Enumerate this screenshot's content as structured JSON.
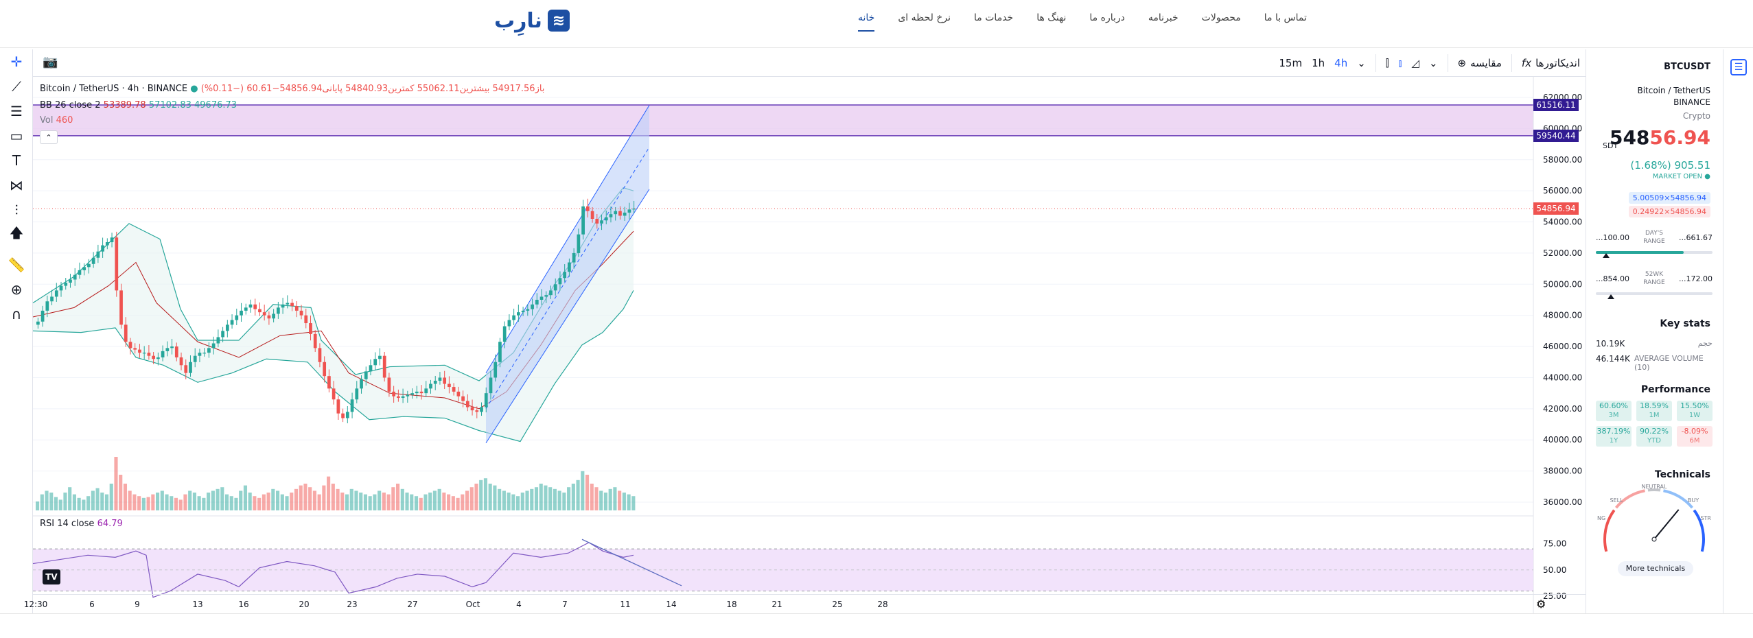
{
  "header": {
    "logo_text": "نارِب",
    "logo_mark": "≋",
    "nav": [
      {
        "label": "خانه",
        "active": true
      },
      {
        "label": "نرخ لحظه ای",
        "active": false
      },
      {
        "label": "خدمات ما",
        "active": false
      },
      {
        "label": "نهنگ ها",
        "active": false
      },
      {
        "label": "درباره ما",
        "active": false
      },
      {
        "label": "خبرنامه",
        "active": false
      },
      {
        "label": "محصولات",
        "active": false
      },
      {
        "label": "تماس با ما",
        "active": false
      }
    ]
  },
  "toolbar": {
    "timeframes": [
      "15m",
      "1h",
      "4h"
    ],
    "active_timeframe": "4h",
    "compare_label": "مقایسه",
    "indicators_label": "اندیکاتورها",
    "indicators_icon": "fx"
  },
  "legend": {
    "symbol_line": "Bitcoin / TetherUS · 4h · BINANCE",
    "ohlc_line": "باز54917.56  بیشترین55062.11  کمترین54840.93  پایانی54856.94−60.61 (−0.11%)",
    "bb_name": "BB 26 close 2",
    "bb_basis": "53389.78",
    "bb_upper": "57102.83",
    "bb_lower": "49676.73",
    "vol_name": "Vol",
    "vol_value": "460",
    "rsi_name": "RSI 14 close",
    "rsi_value": "64.79"
  },
  "price_labels": {
    "upper_line": "61516.11",
    "lower_line": "59540.44",
    "last": "54856.94"
  },
  "chart_data": {
    "type": "candlestick",
    "symbol": "BTCUSDT",
    "interval": "4h",
    "y_ticks": [
      "62000.00",
      "60000.00",
      "58000.00",
      "56000.00",
      "54000.00",
      "52000.00",
      "50000.00",
      "48000.00",
      "46000.00",
      "44000.00",
      "42000.00",
      "40000.00",
      "38000.00",
      "36000.00"
    ],
    "ylim": [
      36000,
      62000
    ],
    "rsi_ticks": [
      "75.00",
      "50.00",
      "25.00"
    ],
    "x_ticks": [
      "12:30",
      "6",
      "9",
      "13",
      "16",
      "20",
      "23",
      "27",
      "Oct",
      "4",
      "7",
      "11",
      "14",
      "18",
      "21",
      "25",
      "28"
    ],
    "closes": [
      47600,
      48300,
      48900,
      49200,
      49600,
      49900,
      50100,
      50300,
      50600,
      50900,
      51100,
      51300,
      51700,
      52100,
      52500,
      52700,
      53000,
      49600,
      47400,
      46300,
      45900,
      45800,
      45600,
      45600,
      45400,
      45200,
      45300,
      45700,
      45900,
      46000,
      45300,
      44800,
      44300,
      45000,
      45400,
      45600,
      45600,
      45900,
      46200,
      46600,
      47000,
      47400,
      47700,
      48000,
      48300,
      48500,
      48700,
      48400,
      48200,
      48000,
      47800,
      48100,
      48500,
      48700,
      48800,
      48600,
      48300,
      48000,
      47500,
      46800,
      45900,
      45000,
      44100,
      43300,
      42600,
      41700,
      41400,
      41800,
      42600,
      43300,
      43900,
      44400,
      44800,
      45200,
      45400,
      44000,
      43100,
      42800,
      42700,
      42800,
      42900,
      43000,
      43100,
      43000,
      43300,
      43600,
      43800,
      44000,
      43600,
      43400,
      43100,
      42800,
      42500,
      42100,
      41900,
      41800,
      42100,
      43000,
      44000,
      45000,
      46300,
      47300,
      47700,
      48000,
      48200,
      48300,
      48400,
      48700,
      49000,
      49200,
      49300,
      49600,
      50000,
      50400,
      50800,
      51400,
      52000,
      53200,
      55000,
      54700,
      54200,
      53900,
      54100,
      54300,
      54500,
      54700,
      54400,
      54600,
      54800,
      54857
    ],
    "bb_upper_pts": [
      [
        0,
        48800
      ],
      [
        60,
        50500
      ],
      [
        100,
        52200
      ],
      [
        140,
        53900
      ],
      [
        185,
        52900
      ],
      [
        215,
        48400
      ],
      [
        240,
        46400
      ],
      [
        300,
        46400
      ],
      [
        350,
        48700
      ],
      [
        405,
        48500
      ],
      [
        420,
        46400
      ],
      [
        470,
        44200
      ],
      [
        520,
        44700
      ],
      [
        600,
        44800
      ],
      [
        650,
        43800
      ],
      [
        700,
        45600
      ],
      [
        760,
        50000
      ],
      [
        785,
        51400
      ],
      [
        820,
        54000
      ],
      [
        860,
        56200
      ],
      [
        875,
        56000
      ]
    ],
    "bb_lower_pts": [
      [
        0,
        47000
      ],
      [
        70,
        46900
      ],
      [
        120,
        47200
      ],
      [
        150,
        45300
      ],
      [
        190,
        44800
      ],
      [
        240,
        43700
      ],
      [
        290,
        44300
      ],
      [
        340,
        45200
      ],
      [
        400,
        45000
      ],
      [
        440,
        43100
      ],
      [
        490,
        41300
      ],
      [
        540,
        41500
      ],
      [
        600,
        41400
      ],
      [
        650,
        40600
      ],
      [
        710,
        39900
      ],
      [
        760,
        43600
      ],
      [
        800,
        46100
      ],
      [
        830,
        46900
      ],
      [
        860,
        48400
      ],
      [
        875,
        49600
      ]
    ],
    "bb_basis_pts": [
      [
        0,
        47900
      ],
      [
        60,
        48500
      ],
      [
        110,
        49900
      ],
      [
        150,
        51400
      ],
      [
        180,
        48800
      ],
      [
        240,
        46300
      ],
      [
        300,
        45300
      ],
      [
        360,
        46700
      ],
      [
        420,
        47000
      ],
      [
        460,
        44300
      ],
      [
        520,
        43000
      ],
      [
        600,
        42700
      ],
      [
        650,
        42000
      ],
      [
        690,
        43100
      ],
      [
        740,
        46100
      ],
      [
        790,
        49600
      ],
      [
        830,
        51300
      ],
      [
        875,
        53400
      ]
    ],
    "channel": {
      "top": [
        [
          660,
          44300
        ],
        [
          898,
          61500
        ]
      ],
      "bottom": [
        [
          660,
          39800
        ],
        [
          898,
          56100
        ]
      ],
      "mid": [
        [
          660,
          42000
        ],
        [
          898,
          58800
        ]
      ]
    },
    "h_zone": [
      59540.44,
      61516.11
    ],
    "last_price": 54856.94,
    "volume": [
      10,
      18,
      22,
      20,
      15,
      12,
      20,
      26,
      18,
      14,
      12,
      16,
      22,
      25,
      20,
      18,
      30,
      60,
      40,
      30,
      22,
      18,
      16,
      14,
      15,
      18,
      20,
      22,
      18,
      16,
      14,
      12,
      18,
      22,
      20,
      16,
      14,
      20,
      22,
      24,
      26,
      18,
      16,
      14,
      22,
      28,
      20,
      16,
      14,
      18,
      20,
      24,
      22,
      18,
      16,
      20,
      24,
      28,
      30,
      26,
      22,
      18,
      28,
      38,
      30,
      24,
      20,
      18,
      24,
      22,
      20,
      18,
      16,
      18,
      22,
      20,
      18,
      26,
      30,
      24,
      20,
      18,
      16,
      14,
      18,
      20,
      22,
      24,
      20,
      18,
      16,
      14,
      18,
      22,
      26,
      30,
      34,
      36,
      30,
      28,
      24,
      22,
      20,
      18,
      16,
      20,
      22,
      24,
      26,
      30,
      28,
      26,
      24,
      22,
      20,
      26,
      30,
      34,
      44,
      40,
      30,
      26,
      22,
      20,
      24,
      26,
      22,
      20,
      18,
      16
    ],
    "rsi_pts": [
      [
        0,
        56
      ],
      [
        40,
        60
      ],
      [
        80,
        64
      ],
      [
        120,
        62
      ],
      [
        150,
        68
      ],
      [
        165,
        64
      ],
      [
        175,
        24
      ],
      [
        200,
        30
      ],
      [
        240,
        46
      ],
      [
        280,
        40
      ],
      [
        300,
        34
      ],
      [
        330,
        52
      ],
      [
        370,
        58
      ],
      [
        410,
        54
      ],
      [
        440,
        48
      ],
      [
        460,
        28
      ],
      [
        500,
        34
      ],
      [
        530,
        42
      ],
      [
        560,
        46
      ],
      [
        600,
        44
      ],
      [
        640,
        34
      ],
      [
        660,
        38
      ],
      [
        700,
        66
      ],
      [
        740,
        62
      ],
      [
        780,
        66
      ],
      [
        810,
        76
      ],
      [
        830,
        68
      ],
      [
        860,
        62
      ],
      [
        875,
        64
      ]
    ],
    "rsi_trend": [
      [
        800,
        79
      ],
      [
        945,
        35
      ]
    ]
  },
  "side_panel": {
    "symbol": "BTCUSDT",
    "name": "Bitcoin / TetherUS",
    "exchange": "BINANCE",
    "type": "Crypto",
    "price_prefix": "548",
    "price_suffix": "56.94",
    "currency": "SDT",
    "change": "(1.68%) 905.51",
    "market_status": "MARKET OPEN",
    "bid": "5.00509×54856.94",
    "ask": "0.24922×54856.94",
    "day_range_lo": "...100.00",
    "day_range_hi": "...661.67",
    "day_range_label": "DAY'S RANGE",
    "day_range_fill": 0.75,
    "wk_range_lo": "...854.00",
    "wk_range_hi": "...172.00",
    "wk_range_label": "52WK RANGE",
    "wk_range_pointer": 0.1,
    "key_stats_title": "Key stats",
    "stat1_value": "10.19K",
    "stat1_label": "حجم",
    "stat2_value": "46.144K",
    "stat2_label": "AVERAGE VOLUME (10)",
    "performance_title": "Performance",
    "performance": [
      {
        "value": "60.60%",
        "period": "3M",
        "dir": "pos"
      },
      {
        "value": "18.59%",
        "period": "1M",
        "dir": "pos"
      },
      {
        "value": "15.50%",
        "period": "1W",
        "dir": "pos"
      },
      {
        "value": "387.19%",
        "period": "1Y",
        "dir": "pos"
      },
      {
        "value": "90.22%",
        "period": "YTD",
        "dir": "pos"
      },
      {
        "value": "-8.09%",
        "period": "6M",
        "dir": "neg"
      }
    ],
    "technicals_title": "Technicals",
    "gauge_labels": {
      "neutral": "NEUTRAL",
      "sell": "SELL",
      "buy": "BUY",
      "strong_sell": "NG",
      "strong_buy": "STR"
    },
    "gauge_value": 0.72,
    "more_button": "More technicals"
  },
  "colors": {
    "up": "#26a69a",
    "down": "#ef5350",
    "accent": "#2962ff",
    "brand": "#1d4fa3",
    "zone": "#e7c8ef",
    "channel": "#bcd0f8",
    "rsi_band": "#efdcfa"
  }
}
